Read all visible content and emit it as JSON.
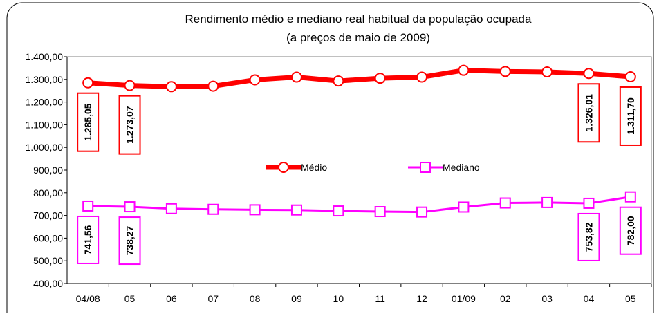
{
  "chart_data": {
    "type": "line",
    "title": "Rendimento médio e mediano real habitual da população ocupada",
    "subtitle": "(a preços de maio de 2009)",
    "categories": [
      "04/08",
      "05",
      "06",
      "07",
      "08",
      "09",
      "10",
      "11",
      "12",
      "01/09",
      "02",
      "03",
      "04",
      "05"
    ],
    "series": [
      {
        "name": "Médio",
        "color": "#ff0000",
        "marker": "circle",
        "values": [
          1285.05,
          1273.07,
          1268,
          1270,
          1298,
          1310,
          1293,
          1305,
          1310,
          1340,
          1335,
          1333,
          1326.01,
          1311.7
        ],
        "value_labels": [
          "1.285,05",
          "1.273,07",
          null,
          null,
          null,
          null,
          null,
          null,
          null,
          null,
          null,
          null,
          "1.326,01",
          "1.311,70"
        ]
      },
      {
        "name": "Mediano",
        "color": "#ff00ff",
        "marker": "square",
        "values": [
          741.56,
          738.27,
          730,
          727,
          725,
          724,
          720,
          717,
          715,
          737,
          755,
          757,
          753.82,
          782.0
        ],
        "value_labels": [
          "741,56",
          "738,27",
          null,
          null,
          null,
          null,
          null,
          null,
          null,
          null,
          null,
          null,
          "753,82",
          "782,00"
        ]
      }
    ],
    "ylim": [
      400,
      1400
    ],
    "yticks": [
      {
        "value": 400,
        "label": "400,00"
      },
      {
        "value": 500,
        "label": "500,00"
      },
      {
        "value": 600,
        "label": "600,00"
      },
      {
        "value": 700,
        "label": "700,00"
      },
      {
        "value": 800,
        "label": "800,00"
      },
      {
        "value": 900,
        "label": "900,00"
      },
      {
        "value": 1000,
        "label": "1.000,00"
      },
      {
        "value": 1100,
        "label": "1.100,00"
      },
      {
        "value": 1200,
        "label": "1.200,00"
      },
      {
        "value": 1300,
        "label": "1.300,00"
      },
      {
        "value": 1400,
        "label": "1.400,00"
      }
    ],
    "grid": false
  }
}
